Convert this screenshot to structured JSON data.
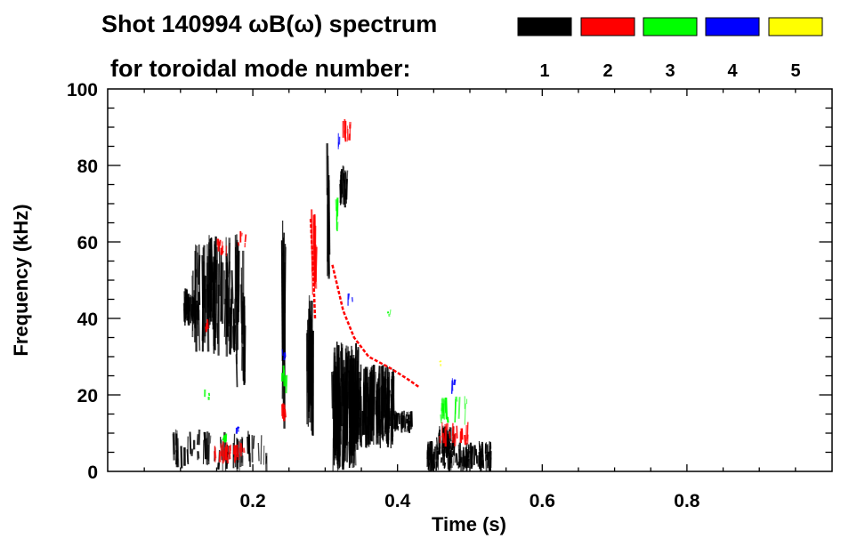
{
  "chart_data": {
    "type": "heatmap",
    "title_line1": "Shot 140994 ωB(ω) spectrum",
    "title_line2": "for toroidal mode number:",
    "xlabel": "Time (s)",
    "ylabel": "Frequency (kHz)",
    "xlim": [
      0,
      1.0
    ],
    "ylim": [
      0,
      100
    ],
    "x_ticks": [
      0.2,
      0.4,
      0.6,
      0.8
    ],
    "x_tick_labels": [
      "0.2",
      "0.4",
      "0.6",
      "0.8"
    ],
    "x_minor_step": 0.05,
    "y_ticks": [
      0,
      20,
      40,
      60,
      80,
      100
    ],
    "y_tick_labels": [
      "0",
      "20",
      "40",
      "60",
      "80",
      "100"
    ],
    "y_minor_step": 5,
    "grid": false,
    "legend_position": "top-right",
    "legend": [
      {
        "mode": "1",
        "color": "#000000"
      },
      {
        "mode": "2",
        "color": "#ff0000"
      },
      {
        "mode": "3",
        "color": "#00ff00"
      },
      {
        "mode": "4",
        "color": "#0000ff"
      },
      {
        "mode": "5",
        "color": "#ffff00"
      }
    ],
    "regions": [
      {
        "t": [
          0.105,
          0.125
        ],
        "f": [
          38,
          48
        ],
        "mode": 1,
        "density": 40
      },
      {
        "t": [
          0.115,
          0.18
        ],
        "f": [
          30,
          62
        ],
        "mode": 1,
        "density": 90
      },
      {
        "t": [
          0.17,
          0.19
        ],
        "f": [
          20,
          58
        ],
        "mode": 1,
        "density": 12
      },
      {
        "t": [
          0.09,
          0.22
        ],
        "f": [
          0,
          11
        ],
        "mode": 1,
        "density": 70
      },
      {
        "t": [
          0.145,
          0.19
        ],
        "f": [
          2,
          8
        ],
        "mode": 2,
        "density": 30
      },
      {
        "t": [
          0.155,
          0.165
        ],
        "f": [
          7,
          10
        ],
        "mode": 3,
        "density": 8
      },
      {
        "t": [
          0.175,
          0.18
        ],
        "f": [
          9,
          12
        ],
        "mode": 4,
        "density": 3
      },
      {
        "t": [
          0.15,
          0.165
        ],
        "f": [
          56,
          61
        ],
        "mode": 2,
        "density": 10
      },
      {
        "t": [
          0.18,
          0.19
        ],
        "f": [
          58,
          63
        ],
        "mode": 2,
        "density": 5
      },
      {
        "t": [
          0.135,
          0.14
        ],
        "f": [
          36,
          40
        ],
        "mode": 2,
        "density": 4
      },
      {
        "t": [
          0.13,
          0.14
        ],
        "f": [
          18,
          22
        ],
        "mode": 3,
        "density": 3
      },
      {
        "t": [
          0.24,
          0.245
        ],
        "f": [
          8,
          66
        ],
        "mode": 1,
        "density": 12
      },
      {
        "t": [
          0.24,
          0.246
        ],
        "f": [
          13,
          18
        ],
        "mode": 2,
        "density": 6
      },
      {
        "t": [
          0.24,
          0.246
        ],
        "f": [
          20,
          28
        ],
        "mode": 3,
        "density": 6
      },
      {
        "t": [
          0.24,
          0.245
        ],
        "f": [
          29,
          32
        ],
        "mode": 4,
        "density": 3
      },
      {
        "t": [
          0.275,
          0.283
        ],
        "f": [
          9,
          47
        ],
        "mode": 1,
        "density": 25
      },
      {
        "t": [
          0.282,
          0.288
        ],
        "f": [
          45,
          70
        ],
        "mode": 2,
        "density": 12
      },
      {
        "t": [
          0.303,
          0.307
        ],
        "f": [
          50,
          86
        ],
        "mode": 1,
        "density": 8
      },
      {
        "t": [
          0.32,
          0.33
        ],
        "f": [
          69,
          80
        ],
        "mode": 1,
        "density": 20
      },
      {
        "t": [
          0.325,
          0.335
        ],
        "f": [
          86,
          93
        ],
        "mode": 2,
        "density": 10
      },
      {
        "t": [
          0.314,
          0.318
        ],
        "f": [
          62,
          72
        ],
        "mode": 3,
        "density": 5
      },
      {
        "t": [
          0.31,
          0.32
        ],
        "f": [
          84,
          90
        ],
        "mode": 4,
        "density": 3
      },
      {
        "t": [
          0.31,
          0.345
        ],
        "f": [
          0,
          34
        ],
        "mode": 1,
        "density": 140
      },
      {
        "t": [
          0.345,
          0.395
        ],
        "f": [
          6,
          28
        ],
        "mode": 1,
        "density": 150
      },
      {
        "t": [
          0.395,
          0.42
        ],
        "f": [
          10,
          16
        ],
        "mode": 1,
        "density": 40
      },
      {
        "t": [
          0.44,
          0.53
        ],
        "f": [
          0,
          8
        ],
        "mode": 1,
        "density": 120
      },
      {
        "t": [
          0.455,
          0.48
        ],
        "f": [
          4,
          12
        ],
        "mode": 1,
        "density": 35
      },
      {
        "t": [
          0.455,
          0.5
        ],
        "f": [
          6,
          13
        ],
        "mode": 2,
        "density": 18
      },
      {
        "t": [
          0.46,
          0.5
        ],
        "f": [
          12,
          20
        ],
        "mode": 3,
        "density": 18
      },
      {
        "t": [
          0.475,
          0.48
        ],
        "f": [
          20,
          25
        ],
        "mode": 4,
        "density": 3
      },
      {
        "t": [
          0.455,
          0.46
        ],
        "f": [
          27,
          29
        ],
        "mode": 5,
        "density": 2
      },
      {
        "t": [
          0.33,
          0.34
        ],
        "f": [
          42,
          47
        ],
        "mode": 4,
        "density": 3
      },
      {
        "t": [
          0.385,
          0.39
        ],
        "f": [
          40,
          43
        ],
        "mode": 3,
        "density": 3
      }
    ],
    "chirps": [
      {
        "mode": 2,
        "points": [
          [
            0.31,
            54
          ],
          [
            0.325,
            42
          ],
          [
            0.34,
            35
          ],
          [
            0.36,
            30
          ],
          [
            0.39,
            27
          ],
          [
            0.415,
            24
          ],
          [
            0.43,
            22
          ]
        ]
      },
      {
        "mode": 2,
        "points": [
          [
            0.28,
            66
          ],
          [
            0.284,
            50
          ],
          [
            0.286,
            40
          ]
        ]
      }
    ]
  }
}
